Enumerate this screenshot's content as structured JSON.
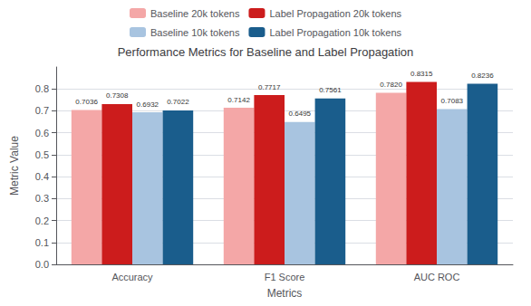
{
  "chart_data": {
    "type": "bar",
    "title": "Performance Metrics for Baseline and Label Propagation",
    "x_label": "Metrics",
    "y_label": "Metric Value",
    "categories": [
      "Accuracy",
      "F1 Score",
      "AUC ROC"
    ],
    "series": [
      {
        "name": "Baseline 20k tokens",
        "color": "#F4A7A7",
        "values": [
          0.7036,
          0.7142,
          0.782
        ],
        "value_labels": [
          "0.7036",
          "0.7142",
          "0.7820"
        ]
      },
      {
        "name": "Label Propagation 20k tokens",
        "color": "#CC1C1C",
        "values": [
          0.7308,
          0.7717,
          0.8315
        ],
        "value_labels": [
          "0.7308",
          "0.7717",
          "0.8315"
        ]
      },
      {
        "name": "Baseline 10k tokens",
        "color": "#A8C4E0",
        "values": [
          0.6932,
          0.6495,
          0.7083
        ],
        "value_labels": [
          "0.6932",
          "0.6495",
          "0.7083"
        ]
      },
      {
        "name": "Label Propagation 10k tokens",
        "color": "#1A5D8C",
        "values": [
          0.7022,
          0.7561,
          0.8236
        ],
        "value_labels": [
          "0.7022",
          "0.7561",
          "0.8236"
        ]
      }
    ],
    "ylim": [
      0.0,
      0.9
    ],
    "yticks": [
      {
        "value": 0,
        "label": "0.0"
      },
      0.1,
      0.2,
      0.3,
      0.4,
      0.5,
      0.6,
      0.7,
      0.8
    ],
    "grid": true,
    "legend": "top",
    "data_labels": true
  }
}
